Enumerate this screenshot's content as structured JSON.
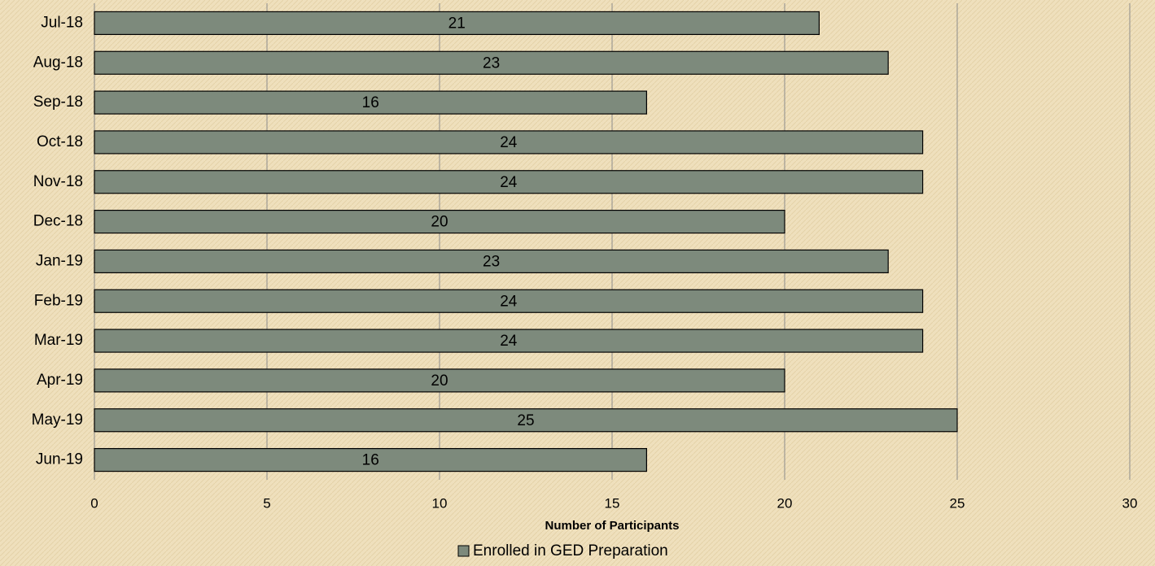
{
  "chart_data": {
    "type": "bar",
    "orientation": "horizontal",
    "categories": [
      "Jul-18",
      "Aug-18",
      "Sep-18",
      "Oct-18",
      "Nov-18",
      "Dec-18",
      "Jan-19",
      "Feb-19",
      "Mar-19",
      "Apr-19",
      "May-19",
      "Jun-19"
    ],
    "series": [
      {
        "name": "Enrolled in GED Preparation",
        "color": "#7d8a7c",
        "values": [
          21,
          23,
          16,
          24,
          24,
          20,
          23,
          24,
          24,
          20,
          25,
          16
        ]
      }
    ],
    "x_label": "Number of Participants",
    "xlim": [
      0,
      30
    ],
    "xticks": [
      0,
      5,
      10,
      15,
      20,
      25,
      30
    ],
    "grid": true,
    "data_labels": true,
    "legend": "bottom"
  }
}
